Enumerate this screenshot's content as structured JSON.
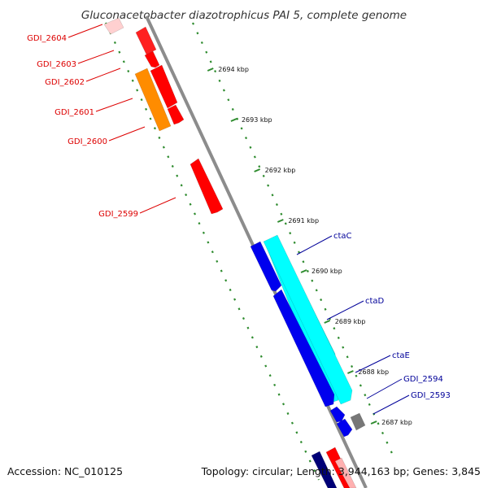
{
  "title": "Gluconacetobacter diazotrophicus PAI 5, complete genome",
  "footer": {
    "accession": "Accession: NC_010125",
    "topology": "Topology: circular; Length: 3,944,163 bp; Genes: 3,845"
  },
  "colors": {
    "backbone": "#8c8c8c",
    "tick_dots": "#2e8b2e",
    "reverse_label": "#dd0000",
    "forward_label": "#000099",
    "red_gene": "#ff0000",
    "orange_gene": "#ff8c00",
    "blue_gene": "#0000ee",
    "cyan_gene": "#00ffff",
    "gray_gene": "#777777",
    "navy_gene": "#000077"
  },
  "scale": {
    "ticks": [
      {
        "label": "2694 kbp",
        "pos": 2694
      },
      {
        "label": "2693 kbp",
        "pos": 2693
      },
      {
        "label": "2692 kbp",
        "pos": 2692
      },
      {
        "label": "2691 kbp",
        "pos": 2691
      },
      {
        "label": "2690 kbp",
        "pos": 2690
      },
      {
        "label": "2689 kbp",
        "pos": 2689
      },
      {
        "label": "2688 kbp",
        "pos": 2688
      },
      {
        "label": "2687 kbp",
        "pos": 2687
      }
    ]
  },
  "genes_reverse": [
    {
      "name": "GDI_2604"
    },
    {
      "name": "GDI_2603"
    },
    {
      "name": "GDI_2602"
    },
    {
      "name": "GDI_2601"
    },
    {
      "name": "GDI_2600"
    },
    {
      "name": "GDI_2599"
    }
  ],
  "genes_forward": [
    {
      "name": "ctaC"
    },
    {
      "name": "ctaD"
    },
    {
      "name": "ctaE"
    },
    {
      "name": "GDI_2594"
    },
    {
      "name": "GDI_2593"
    }
  ]
}
